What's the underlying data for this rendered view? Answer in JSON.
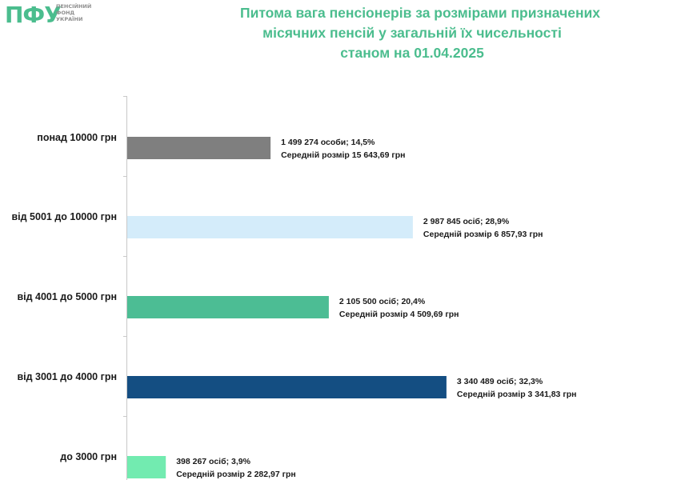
{
  "logo": {
    "mark": "ПФУ",
    "text_lines": [
      "ПЕНСІЙНИЙ",
      "ФОНД",
      "УКРАЇНИ"
    ]
  },
  "chart_data": {
    "type": "bar",
    "orientation": "horizontal",
    "title_lines": [
      "Питома вага пенсіонерів за розмірами призначених",
      "місячних пенсій у загальній їх чисельності",
      "станом на 01.04.2025"
    ],
    "categories": [
      "понад 10000 грн",
      "від 5001 до 10000 грн",
      "від 4001 до 5000 грн",
      "від 3001 до 4000 грн",
      "до 3000 грн"
    ],
    "values": [
      14.5,
      28.9,
      20.4,
      32.3,
      3.9
    ],
    "counts": [
      1499274,
      2987845,
      2105500,
      3340489,
      398267
    ],
    "average_pension": [
      15643.69,
      6857.93,
      4509.69,
      3341.83,
      2282.97
    ],
    "labels_line1": [
      "1 499 274 особи;  14,5%",
      "2 987 845 осіб; 28,9%",
      "2 105 500 осіб; 20,4%",
      "3 340 489 осіб; 32,3%",
      "398 267 осіб; 3,9%"
    ],
    "labels_line2": [
      "Середній розмір 15 643,69 грн",
      "Середній розмір 6 857,93 грн",
      "Середній розмір 4 509,69 грн",
      "Середній розмір 3 341,83 грн",
      "Середній розмір 2 282,97 грн"
    ],
    "colors": [
      "#7f7f7f",
      "#d4ecfa",
      "#4cbd94",
      "#144e82",
      "#72ebb0"
    ],
    "xlim": [
      0,
      100
    ],
    "xlabel": "",
    "ylabel": "",
    "grid": false,
    "legend": "none"
  }
}
